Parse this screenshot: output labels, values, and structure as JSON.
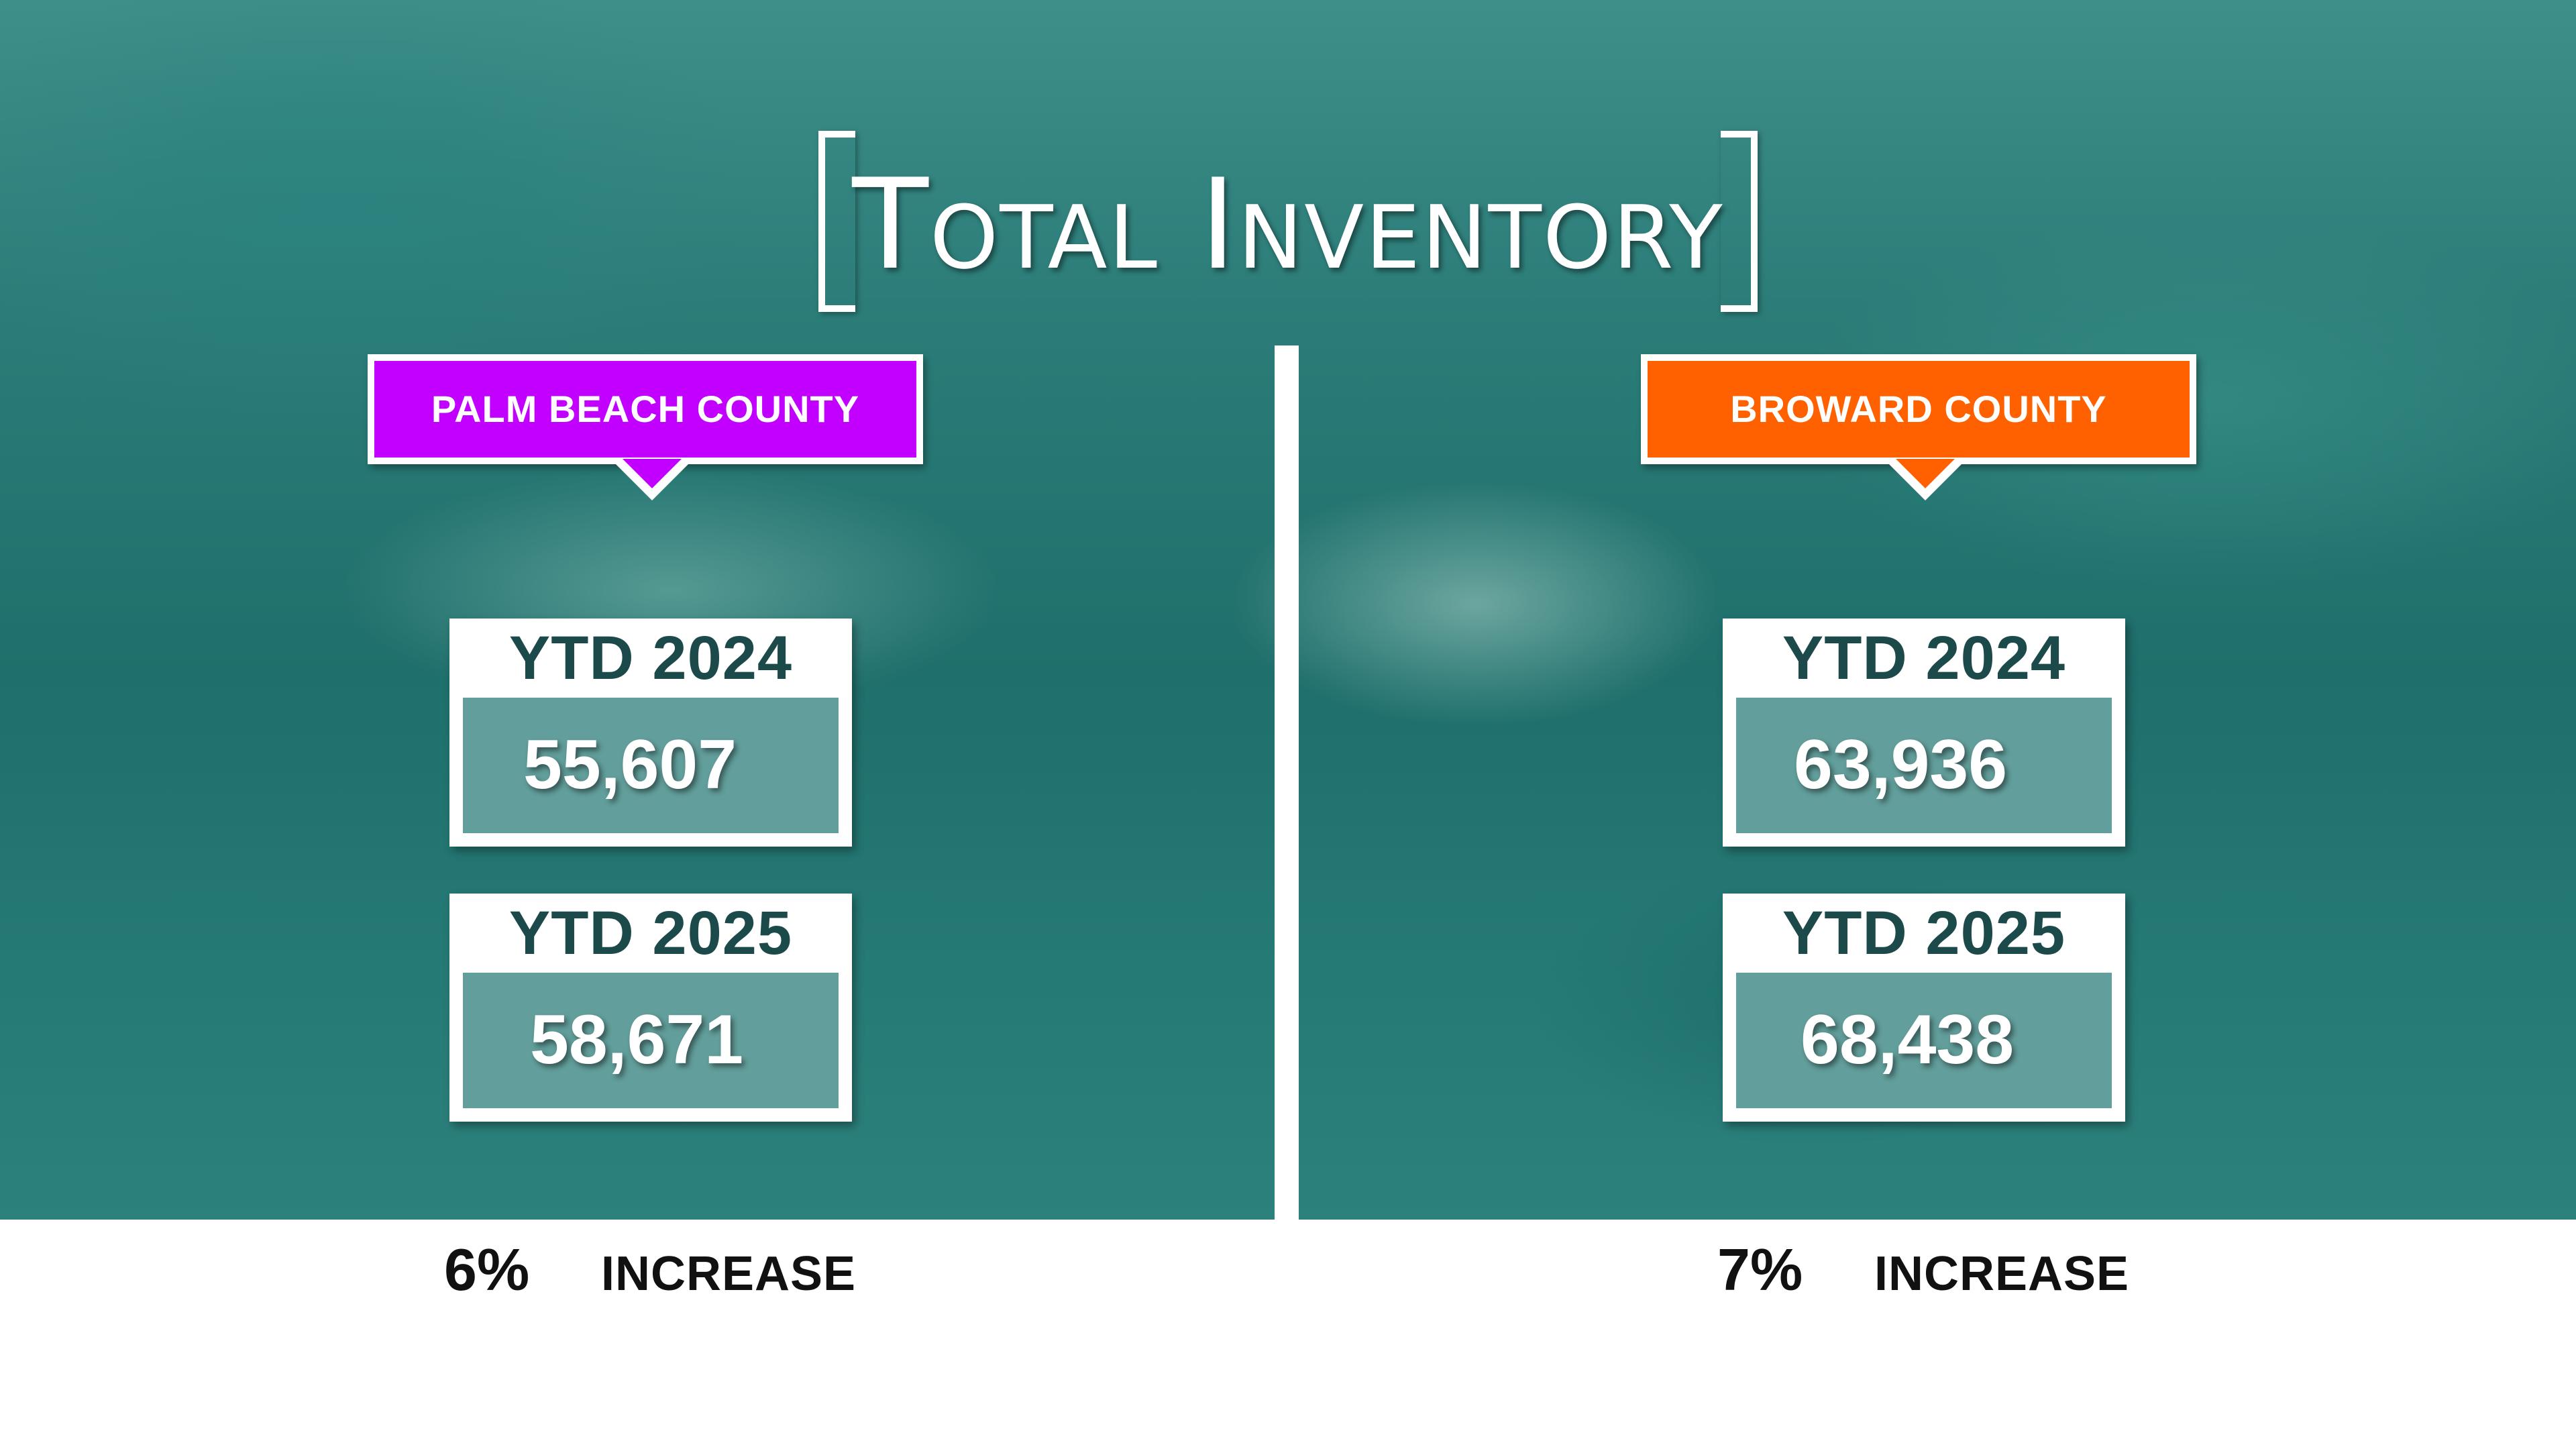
{
  "title": "Total Inventory",
  "colors": {
    "palm_beach_tag": "#c100ff",
    "broward_tag": "#ff6100",
    "background_teal": "#2a7f7b"
  },
  "left": {
    "county": "PALM BEACH COUNTY",
    "ytd_2024_label": "YTD 2024",
    "ytd_2024_value": "55,607",
    "ytd_2025_label": "YTD 2025",
    "ytd_2025_value": "58,671",
    "change_pct": "6%",
    "change_word": "INCREASE"
  },
  "right": {
    "county": "BROWARD COUNTY",
    "ytd_2024_label": "YTD 2024",
    "ytd_2024_value": "63,936",
    "ytd_2025_label": "YTD 2025",
    "ytd_2025_value": "68,438",
    "change_pct": "7%",
    "change_word": "INCREASE"
  }
}
